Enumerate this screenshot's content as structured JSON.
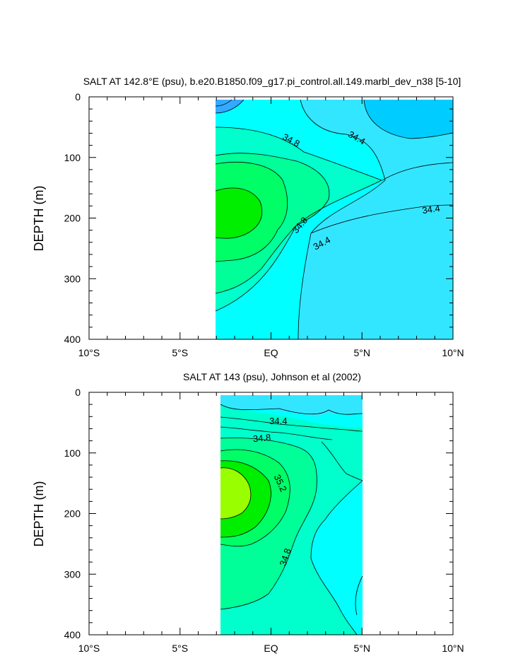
{
  "chart_data": [
    {
      "type": "contour",
      "title": "SALT AT 142.8°E (psu), b.e20.B1850.f09_g17.pi_control.all.149.marbl_dev_n38 [5-10]",
      "ylabel": "DEPTH (m)",
      "xlabel": "",
      "xlim": [
        -10,
        10
      ],
      "ylim": [
        400,
        0
      ],
      "x_ticks": [
        {
          "value": -10,
          "label": "10°S"
        },
        {
          "value": -5,
          "label": "5°S"
        },
        {
          "value": 0,
          "label": "EQ"
        },
        {
          "value": 5,
          "label": "5°N"
        },
        {
          "value": 10,
          "label": "10°N"
        }
      ],
      "y_ticks": [
        0,
        100,
        200,
        300,
        400
      ],
      "data_extent": {
        "x": [
          -3,
          10
        ],
        "y": [
          5,
          400
        ]
      },
      "contour_labels": [
        {
          "text": "34.8",
          "x": 1.1,
          "y": 72,
          "angle": 28
        },
        {
          "text": "34.4",
          "x": 4.7,
          "y": 68,
          "angle": 30
        },
        {
          "text": "34.8",
          "x": 1.6,
          "y": 212,
          "angle": -50
        },
        {
          "text": "34.4",
          "x": 2.8,
          "y": 242,
          "angle": -28
        },
        {
          "text": "34.4",
          "x": 8.8,
          "y": 186,
          "angle": -8
        }
      ],
      "fill_colors": {
        "light_blue": "#33e6ff",
        "sky_blue": "#00ccff",
        "blue": "#33aaff",
        "cyan": "#00ffff",
        "aqua": "#00ffcc",
        "teal_green": "#00ff99",
        "green": "#00ff66",
        "bright_green": "#00ee00",
        "lime": "#99ff00"
      }
    },
    {
      "type": "contour",
      "title": "SALT AT 143 (psu), Johnson et al (2002)",
      "ylabel": "DEPTH (m)",
      "xlabel": "",
      "xlim": [
        -10,
        10
      ],
      "ylim": [
        400,
        0
      ],
      "x_ticks": [
        {
          "value": -10,
          "label": "10°S"
        },
        {
          "value": -5,
          "label": "5°S"
        },
        {
          "value": 0,
          "label": "EQ"
        },
        {
          "value": 5,
          "label": "5°N"
        },
        {
          "value": 10,
          "label": "10°N"
        }
      ],
      "y_ticks": [
        0,
        100,
        200,
        300,
        400
      ],
      "data_extent": {
        "x": [
          -2.7,
          5
        ],
        "y": [
          5,
          400
        ]
      },
      "contour_labels": [
        {
          "text": "34.4",
          "x": 0.4,
          "y": 48,
          "angle": 0
        },
        {
          "text": "34.8",
          "x": -0.5,
          "y": 76,
          "angle": -5
        },
        {
          "text": "35.2",
          "x": 0.5,
          "y": 150,
          "angle": 65
        },
        {
          "text": "34.8",
          "x": 0.8,
          "y": 272,
          "angle": -72
        }
      ]
    }
  ]
}
